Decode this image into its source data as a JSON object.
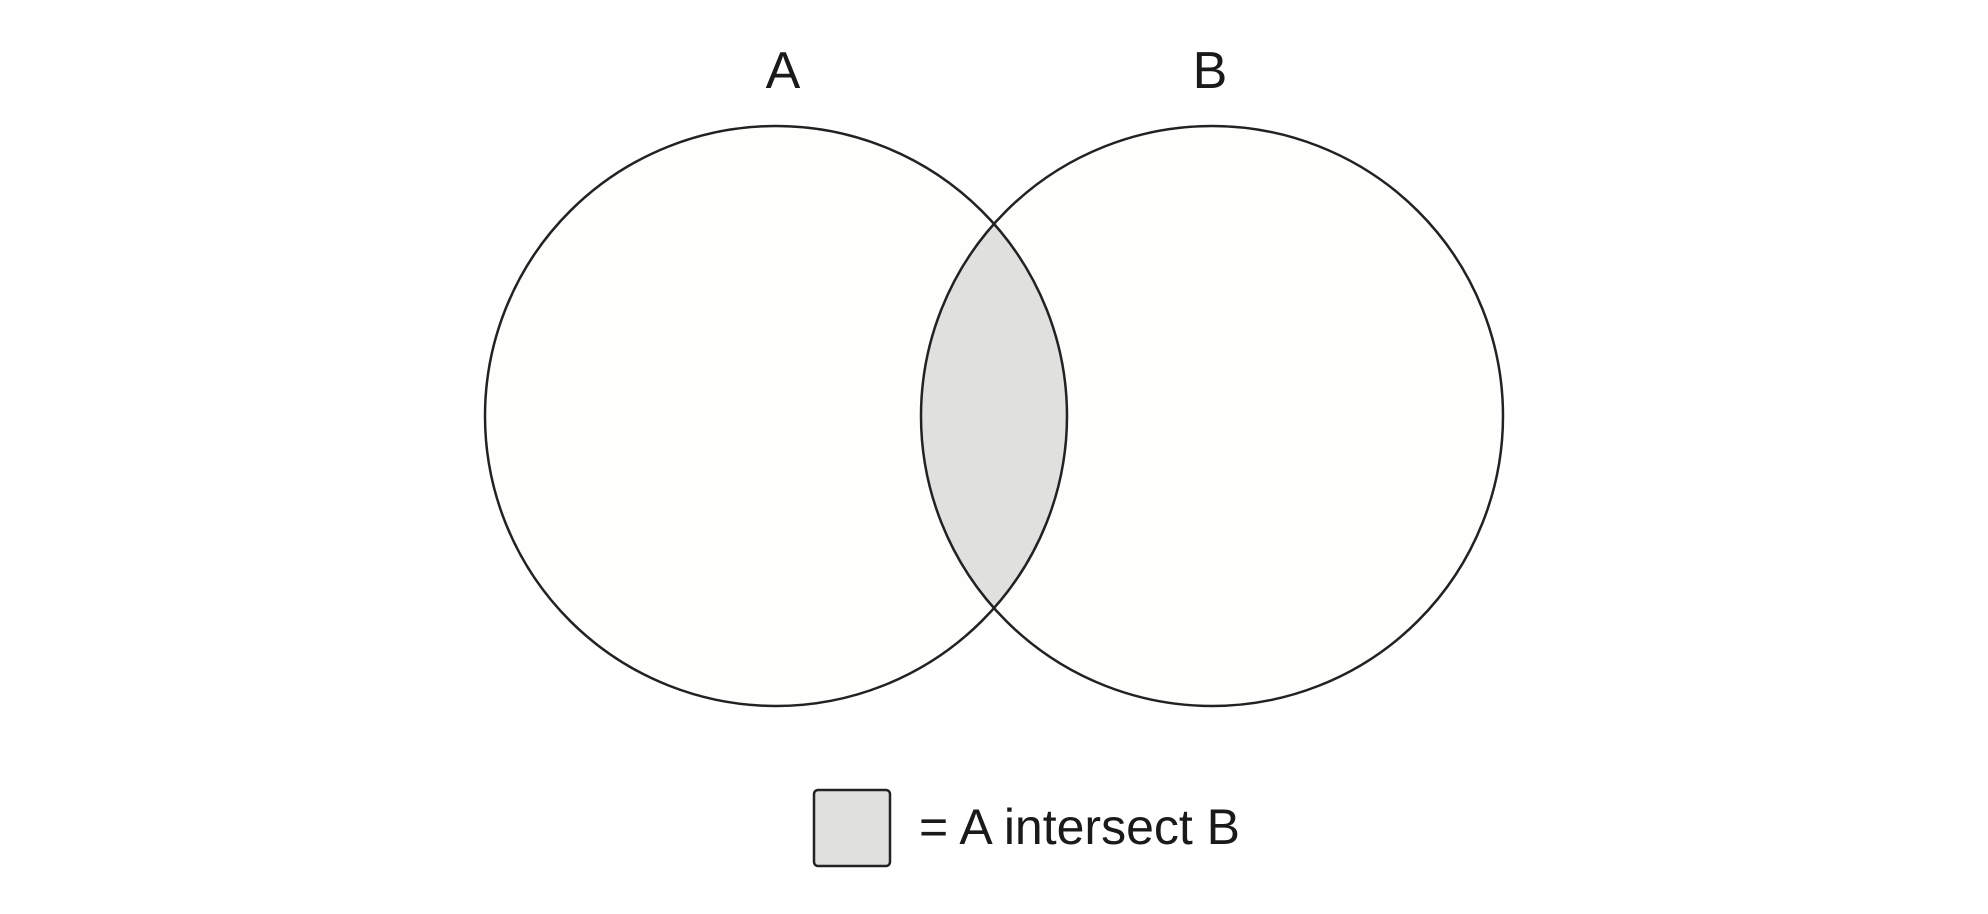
{
  "diagram": {
    "sets": [
      {
        "id": "A",
        "label": "A"
      },
      {
        "id": "B",
        "label": "B"
      }
    ],
    "colors": {
      "outline": "#222222",
      "circle_fill": "#fefefd",
      "intersection_fill": "#e0e0df",
      "text": "#1a1a1a"
    },
    "legend": {
      "text": "= A intersect B"
    }
  }
}
